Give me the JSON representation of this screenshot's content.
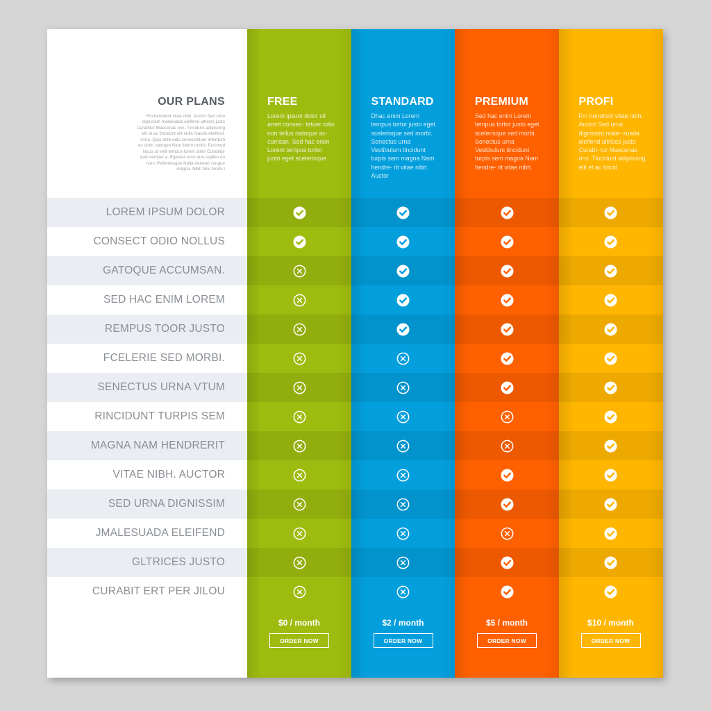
{
  "heading": {
    "title": "OUR PLANS",
    "description": "Fm hendrerit vitae nibh. Auctor Sed urna dignissim malesuada eleifend ultrices justo Curabitur Maecenas orci. Tincidunt adipiscing elit et ac tincidunt elit nulla mauris eleifend. Urna. Quis ante odio consectetuer interdum eu dolor natoque Nam libero mollis. Euismod lacus ut velit tempus lorem dolor Curabitur quis semper a. Egestas eros quis sapien eu nunc Pellentesque Nulla Aenean congue magna. Nibh felis Morbi I"
  },
  "features": [
    "LOREM IPSUM DOLOR",
    "CONSECT ODIO NOLLUS",
    "GATOQUE ACCUMSAN.",
    "SED HAC ENIM LOREM",
    "REMPUS TOOR JUSTO",
    "FCELERIE SED MORBI.",
    "SENECTUS URNA VTUM",
    "RINCIDUNT TURPIS SEM",
    "MAGNA NAM HENDRERIT",
    "VITAE NIBH. AUCTOR",
    "SED URNA DIGNISSIM",
    "JMALESUADA ELEIFEND",
    "GLTRICES JUSTO",
    "CURABIT ERT PER JILOU"
  ],
  "icons": {
    "included": "check-circle-icon",
    "excluded": "x-circle-icon"
  },
  "plans": [
    {
      "key": "free",
      "name": "FREE",
      "description": "Lorem ipsum dolor sit amet consec- tetuer odio non tellus natoque ac- cumsan. Sed hac enim Lorem tempus tortor justo eget scelerisque",
      "price": "$0 / month",
      "button": "ORDER NOW",
      "color": "#9ebc10",
      "included": [
        true,
        true,
        false,
        false,
        false,
        false,
        false,
        false,
        false,
        false,
        false,
        false,
        false,
        false
      ]
    },
    {
      "key": "standard",
      "name": "STANDARD",
      "description": "Dhac enim Lorem tempus tortor justo eget scelerisque sed morbi. Senectus urna Vestibulum tincidunt turpis sem magna Nam hendre- rit vitae nibh. Auctor",
      "price": "$2 / month",
      "button": "ORDER NOW",
      "color": "#039fdd",
      "included": [
        true,
        true,
        true,
        true,
        true,
        false,
        false,
        false,
        false,
        false,
        false,
        false,
        false,
        false
      ]
    },
    {
      "key": "premium",
      "name": "PREMIUM",
      "description": "Sed hac enim Lorem tempus tortor justo eget scelerisque sed morbi. Senectus urna Vestibulum tincidunt turpis sem magna Nam hendre- rit vitae nibh.",
      "price": "$5 / month",
      "button": "ORDER NOW",
      "color": "#ff6000",
      "included": [
        true,
        true,
        true,
        true,
        true,
        true,
        true,
        false,
        false,
        true,
        true,
        false,
        true,
        true
      ]
    },
    {
      "key": "profi",
      "name": "PROFI",
      "description": "Fm hendrerit vitae nibh. Auctor Sed urna dignissim male- suada eleifend ultrices justo Curabi- tur Maecenas orci. Tincidunt adipiscing elit et ac tincid",
      "price": "$10 / month",
      "button": "ORDER NOW",
      "color": "#ffb600",
      "included": [
        true,
        true,
        true,
        true,
        true,
        true,
        true,
        true,
        true,
        true,
        true,
        true,
        true,
        true
      ]
    }
  ]
}
